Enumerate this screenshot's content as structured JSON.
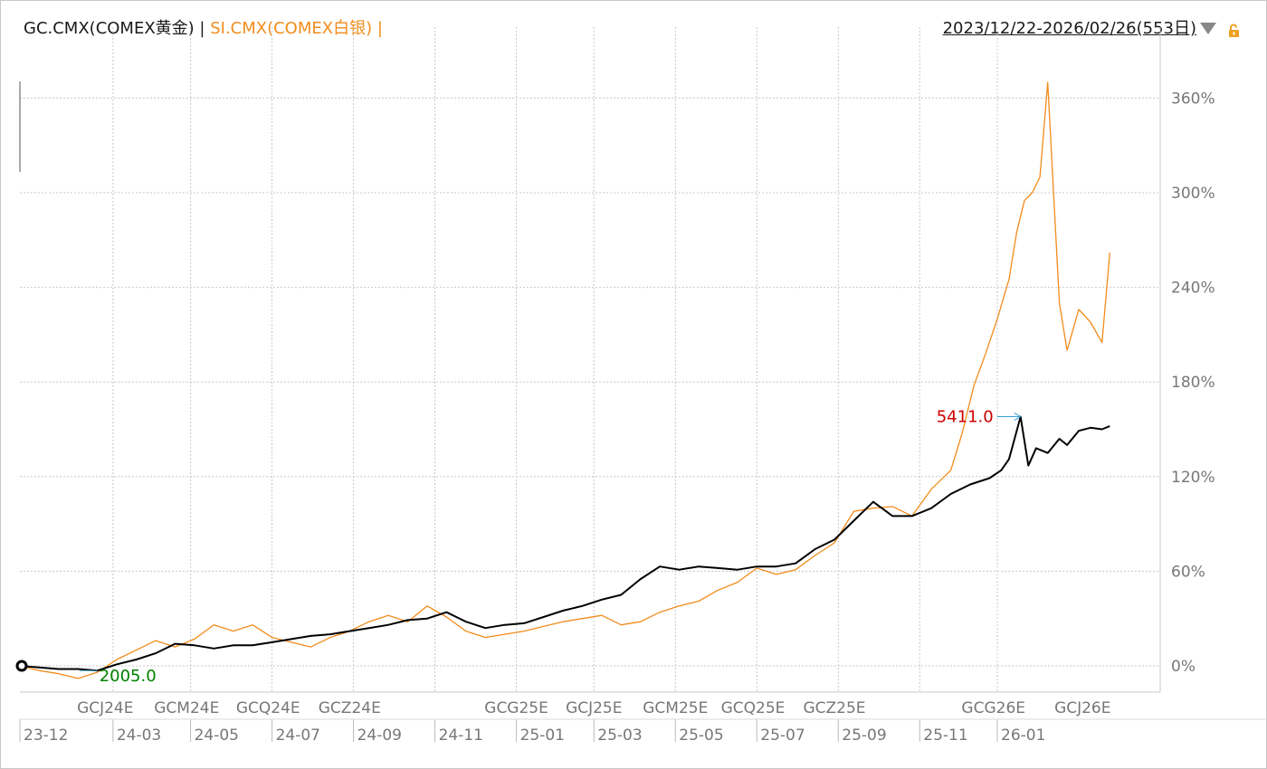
{
  "header": {
    "gold_label": "GC.CMX(COMEX黄金)",
    "separator1": " | ",
    "silver_label": "SI.CMX(COMEX白银)",
    "separator2": " |",
    "range": "2023/12/22-2026/02/26(553日)"
  },
  "colors": {
    "gold_line": "#000000",
    "silver_line": "#f28c1b",
    "max_label": "#cc0000",
    "min_label": "#008000",
    "marker_arrow": "#3aa0d0",
    "grid": "#c8c8c8"
  },
  "icons": {
    "dropdown": "triangle-down-icon",
    "lock": "lock-icon"
  },
  "chart_data": {
    "type": "line",
    "title": "",
    "xlabel": "",
    "ylabel": "",
    "y_unit": "%",
    "ylim": [
      -5,
      375
    ],
    "y_ticks": [
      "0%",
      "60%",
      "120%",
      "180%",
      "240%",
      "300%",
      "360%"
    ],
    "x_ticks": [
      "23-12",
      "24-03",
      "24-05",
      "24-07",
      "24-09",
      "24-11",
      "25-01",
      "25-03",
      "25-05",
      "25-07",
      "25-09",
      "25-11",
      "26-01"
    ],
    "x_tick_pos": [
      0,
      2.4,
      4.4,
      6.5,
      8.6,
      10.7,
      12.8,
      14.8,
      16.9,
      19.0,
      21.1,
      23.2,
      25.2
    ],
    "contract_labels": [
      "GCJ24E",
      "GCM24E",
      "GCQ24E",
      "GCZ24E",
      "GCG25E",
      "GCJ25E",
      "GCM25E",
      "GCQ25E",
      "GCZ25E",
      "GCG26E",
      "GCJ26E"
    ],
    "contract_pos": [
      2.2,
      4.3,
      6.4,
      8.5,
      12.8,
      14.8,
      16.9,
      18.9,
      21.0,
      25.1,
      27.4
    ],
    "grid": true,
    "annotations": {
      "max_label": "5411.0",
      "min_label": "2005.0"
    },
    "series": [
      {
        "name": "GC.CMX(COMEX黄金)",
        "x": [
          0,
          0.5,
          1.0,
          1.5,
          2.0,
          2.5,
          3.0,
          3.5,
          4.0,
          4.5,
          5.0,
          5.5,
          6.0,
          6.5,
          7.0,
          7.5,
          8.0,
          8.5,
          9.0,
          9.5,
          10.0,
          10.5,
          11.0,
          11.5,
          12.0,
          12.5,
          13.0,
          13.5,
          14.0,
          14.5,
          15.0,
          15.5,
          16.0,
          16.5,
          17.0,
          17.5,
          18.0,
          18.5,
          19.0,
          19.5,
          20.0,
          20.5,
          21.0,
          21.5,
          22.0,
          22.5,
          23.0,
          23.5,
          24.0,
          24.5,
          25.0,
          25.3,
          25.5,
          25.8,
          26.0,
          26.2,
          26.5,
          26.8,
          27.0,
          27.3,
          27.6,
          27.9,
          28.1
        ],
        "values": [
          0,
          -1,
          -2,
          -2,
          -3,
          1,
          4,
          8,
          14,
          13,
          11,
          13,
          13,
          15,
          17,
          19,
          20,
          22,
          24,
          26,
          29,
          30,
          34,
          28,
          24,
          26,
          27,
          31,
          35,
          38,
          42,
          45,
          55,
          63,
          61,
          63,
          62,
          61,
          63,
          63,
          65,
          74,
          80,
          92,
          104,
          95,
          95,
          100,
          109,
          115,
          119,
          124,
          131,
          158,
          127,
          138,
          135,
          144,
          140,
          149,
          151,
          150,
          152
        ]
      },
      {
        "name": "SI.CMX(COMEX白银)",
        "x": [
          0,
          0.5,
          1.0,
          1.5,
          2.0,
          2.5,
          3.0,
          3.5,
          4.0,
          4.5,
          5.0,
          5.5,
          6.0,
          6.5,
          7.0,
          7.5,
          8.0,
          8.5,
          9.0,
          9.5,
          10.0,
          10.5,
          11.0,
          11.5,
          12.0,
          12.5,
          13.0,
          13.5,
          14.0,
          14.5,
          15.0,
          15.5,
          16.0,
          16.5,
          17.0,
          17.5,
          18.0,
          18.5,
          19.0,
          19.5,
          20.0,
          20.5,
          21.0,
          21.5,
          22.0,
          22.5,
          23.0,
          23.5,
          24.0,
          24.3,
          24.6,
          24.9,
          25.2,
          25.5,
          25.7,
          25.9,
          26.1,
          26.3,
          26.5,
          26.8,
          27.0,
          27.3,
          27.6,
          27.9,
          28.1
        ],
        "values": [
          0,
          -3,
          -5,
          -8,
          -4,
          4,
          10,
          16,
          12,
          17,
          26,
          22,
          26,
          18,
          15,
          12,
          18,
          22,
          28,
          32,
          28,
          38,
          31,
          22,
          18,
          20,
          22,
          25,
          28,
          30,
          32,
          26,
          28,
          34,
          38,
          41,
          48,
          53,
          62,
          58,
          61,
          70,
          78,
          98,
          100,
          101,
          95,
          112,
          124,
          148,
          178,
          198,
          220,
          245,
          275,
          295,
          300,
          310,
          370,
          230,
          200,
          226,
          218,
          205,
          262
        ]
      }
    ]
  }
}
